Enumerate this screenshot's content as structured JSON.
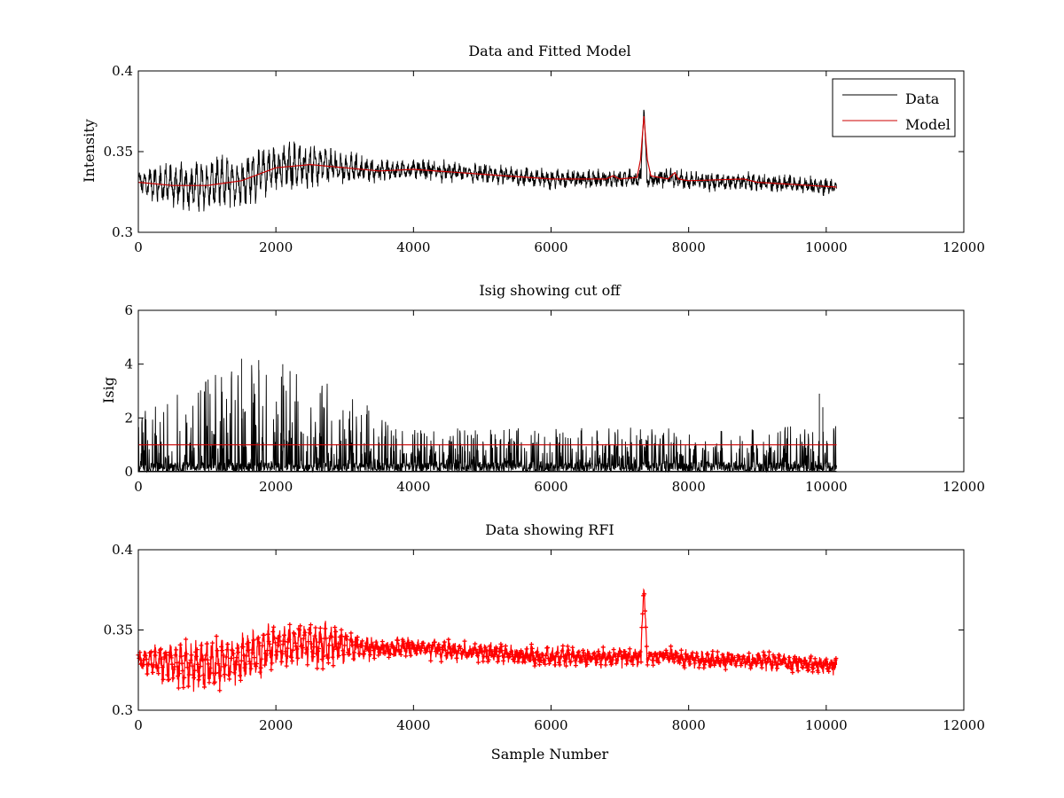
{
  "chart_data": [
    {
      "type": "line",
      "title": "Data and Fitted Model",
      "xlabel": "",
      "ylabel": "Intensity",
      "xlim": [
        0,
        12000
      ],
      "ylim": [
        0.3,
        0.4
      ],
      "xticks": [
        0,
        2000,
        4000,
        6000,
        8000,
        10000,
        12000
      ],
      "xtick_labels": [
        "0",
        "2000",
        "4000",
        "6000",
        "8000",
        "10000",
        "12000"
      ],
      "yticks": [
        0.3,
        0.35,
        0.4
      ],
      "ytick_labels": [
        "0.3",
        "0.35",
        "0.4"
      ],
      "grid": false,
      "legend": "top-right",
      "series": [
        {
          "name": "Data",
          "color": "#000000",
          "kind": "noisy-line",
          "x_range": [
            0,
            10150
          ],
          "baseline": [
            [
              0,
              0.331
            ],
            [
              500,
              0.329
            ],
            [
              1000,
              0.329
            ],
            [
              1500,
              0.332
            ],
            [
              2000,
              0.34
            ],
            [
              2500,
              0.342
            ],
            [
              3000,
              0.34
            ],
            [
              3500,
              0.338
            ],
            [
              4000,
              0.339
            ],
            [
              5000,
              0.336
            ],
            [
              6000,
              0.333
            ],
            [
              7000,
              0.333
            ],
            [
              7350,
              0.333
            ],
            [
              7700,
              0.334
            ],
            [
              8000,
              0.332
            ],
            [
              9000,
              0.331
            ],
            [
              10150,
              0.328
            ]
          ],
          "oscillation_amplitude": [
            [
              0,
              0.004
            ],
            [
              300,
              0.01
            ],
            [
              1200,
              0.013
            ],
            [
              2000,
              0.012
            ],
            [
              2600,
              0.011
            ],
            [
              3200,
              0.006
            ],
            [
              3600,
              0.004
            ],
            [
              10150,
              0.003
            ]
          ],
          "spike": {
            "x": 7350,
            "y": 0.377
          }
        },
        {
          "name": "Model",
          "color": "#cc0000",
          "kind": "line",
          "points": [
            [
              0,
              0.331
            ],
            [
              500,
              0.329
            ],
            [
              1000,
              0.329
            ],
            [
              1500,
              0.332
            ],
            [
              2000,
              0.34
            ],
            [
              2500,
              0.342
            ],
            [
              3000,
              0.34
            ],
            [
              3500,
              0.338
            ],
            [
              4000,
              0.339
            ],
            [
              5000,
              0.336
            ],
            [
              6000,
              0.333
            ],
            [
              6800,
              0.333
            ],
            [
              6900,
              0.335
            ],
            [
              7000,
              0.333
            ],
            [
              7250,
              0.334
            ],
            [
              7300,
              0.345
            ],
            [
              7350,
              0.372
            ],
            [
              7400,
              0.345
            ],
            [
              7450,
              0.335
            ],
            [
              7700,
              0.333
            ],
            [
              7800,
              0.337
            ],
            [
              7850,
              0.333
            ],
            [
              8000,
              0.332
            ],
            [
              8800,
              0.333
            ],
            [
              9000,
              0.331
            ],
            [
              10150,
              0.328
            ]
          ]
        }
      ]
    },
    {
      "type": "line",
      "title": "Isig showing cut off",
      "xlabel": "",
      "ylabel": "Isig",
      "xlim": [
        0,
        12000
      ],
      "ylim": [
        0,
        6
      ],
      "xticks": [
        0,
        2000,
        4000,
        6000,
        8000,
        10000,
        12000
      ],
      "xtick_labels": [
        "0",
        "2000",
        "4000",
        "6000",
        "8000",
        "10000",
        "12000"
      ],
      "yticks": [
        0,
        2,
        4,
        6
      ],
      "ytick_labels": [
        "0",
        "2",
        "4",
        "6"
      ],
      "grid": false,
      "series": [
        {
          "color": "#000000",
          "kind": "noise-spikes",
          "x_range": [
            0,
            10150
          ],
          "envelope_max": [
            [
              0,
              2.2
            ],
            [
              500,
              3.0
            ],
            [
              1000,
              3.6
            ],
            [
              1500,
              4.1
            ],
            [
              2000,
              4.0
            ],
            [
              2500,
              3.6
            ],
            [
              3000,
              3.1
            ],
            [
              3500,
              2.2
            ],
            [
              4000,
              1.6
            ],
            [
              10150,
              1.7
            ]
          ],
          "notable_peaks": [
            [
              1500,
              4.2
            ],
            [
              1750,
              4.15
            ],
            [
              2100,
              4.0
            ],
            [
              9900,
              2.9
            ],
            [
              9950,
              2.4
            ]
          ]
        },
        {
          "color": "#cc0000",
          "kind": "line",
          "points": [
            [
              0,
              1
            ],
            [
              10150,
              1
            ]
          ]
        }
      ]
    },
    {
      "type": "scatter",
      "title": "Data showing RFI",
      "xlabel": "Sample Number",
      "ylabel": "",
      "xlim": [
        0,
        12000
      ],
      "ylim": [
        0.3,
        0.4
      ],
      "xticks": [
        0,
        2000,
        4000,
        6000,
        8000,
        10000,
        12000
      ],
      "xtick_labels": [
        "0",
        "2000",
        "4000",
        "6000",
        "8000",
        "10000",
        "12000"
      ],
      "yticks": [
        0.3,
        0.35,
        0.4
      ],
      "ytick_labels": [
        "0.3",
        "0.35",
        "0.4"
      ],
      "grid": false,
      "series": [
        {
          "color": "#ff0000",
          "marker": "plus",
          "kind": "noisy-points",
          "x_range": [
            0,
            10150
          ],
          "baseline": [
            [
              0,
              0.331
            ],
            [
              500,
              0.329
            ],
            [
              1000,
              0.329
            ],
            [
              1500,
              0.332
            ],
            [
              2000,
              0.34
            ],
            [
              2500,
              0.342
            ],
            [
              3000,
              0.34
            ],
            [
              3500,
              0.338
            ],
            [
              4000,
              0.339
            ],
            [
              5000,
              0.336
            ],
            [
              6000,
              0.333
            ],
            [
              7000,
              0.333
            ],
            [
              7350,
              0.333
            ],
            [
              7700,
              0.334
            ],
            [
              8000,
              0.332
            ],
            [
              9000,
              0.331
            ],
            [
              10150,
              0.328
            ]
          ],
          "oscillation_amplitude": [
            [
              0,
              0.004
            ],
            [
              300,
              0.01
            ],
            [
              1200,
              0.013
            ],
            [
              2000,
              0.012
            ],
            [
              2600,
              0.011
            ],
            [
              3200,
              0.006
            ],
            [
              3600,
              0.004
            ],
            [
              10150,
              0.003
            ]
          ],
          "spike": {
            "x": 7350,
            "y": 0.377
          }
        }
      ]
    }
  ]
}
